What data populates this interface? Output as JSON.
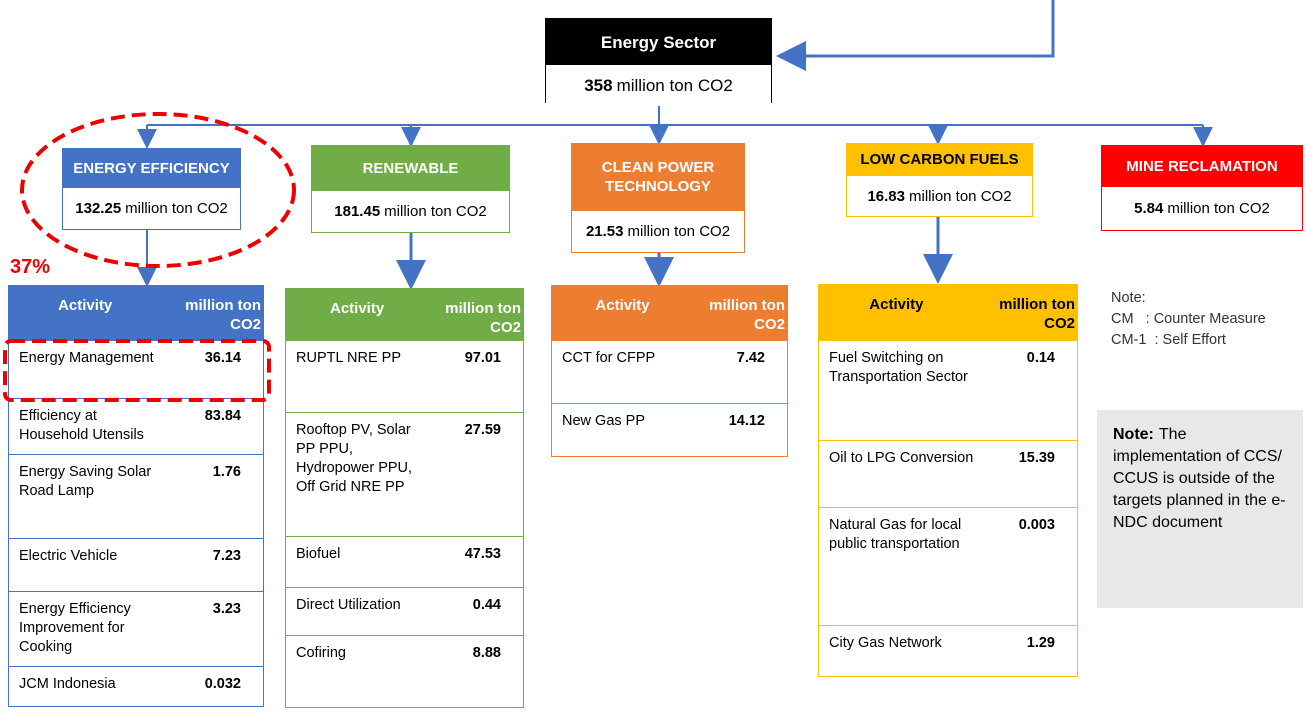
{
  "top": {
    "title": "Energy Sector",
    "value": "358",
    "unit": "million ton CO2"
  },
  "categories": [
    {
      "name": "ENERGY EFFICIENCY",
      "value": "132.25",
      "unit": "million ton CO2",
      "color": "#4472c4"
    },
    {
      "name": "RENEWABLE",
      "value": "181.45",
      "unit": "million ton CO2",
      "color": "#70ad47"
    },
    {
      "name": "CLEAN POWER TECHNOLOGY",
      "value": "21.53",
      "unit": "million ton CO2",
      "color": "#ed7d31"
    },
    {
      "name": "LOW CARBON FUELS",
      "value": "16.83",
      "unit": "million ton CO2",
      "color": "#ffc000"
    },
    {
      "name": "MINE RECLAMATION",
      "value": "5.84",
      "unit": "million ton CO2",
      "color": "#ff0000"
    }
  ],
  "tables": [
    {
      "header": [
        "Activity",
        "million ton CO2"
      ],
      "rows": [
        [
          "Energy Management",
          "36.14"
        ],
        [
          "Efficiency at Household Utensils",
          "83.84"
        ],
        [
          "Energy Saving Solar Road Lamp",
          "1.76"
        ],
        [
          "Electric Vehicle",
          "7.23"
        ],
        [
          "Energy Efficiency Improvement for Cooking",
          "3.23"
        ],
        [
          "JCM Indonesia",
          "0.032"
        ]
      ]
    },
    {
      "header": [
        "Activity",
        "million ton CO2"
      ],
      "rows": [
        [
          "RUPTL NRE PP",
          "97.01"
        ],
        [
          "Rooftop PV, Solar PP PPU, Hydropower PPU, Off Grid NRE PP",
          "27.59"
        ],
        [
          "Biofuel",
          "47.53"
        ],
        [
          "Direct Utilization",
          "0.44"
        ],
        [
          "Cofiring",
          "8.88"
        ]
      ]
    },
    {
      "header": [
        "Activity",
        "million ton CO2"
      ],
      "rows": [
        [
          "CCT for CFPP",
          "7.42"
        ],
        [
          "New Gas PP",
          "14.12"
        ]
      ]
    },
    {
      "header": [
        "Activity",
        "million ton CO2"
      ],
      "rows": [
        [
          "Fuel Switching on Transportation Sector",
          "0.14"
        ],
        [
          "Oil to LPG Conversion",
          "15.39"
        ],
        [
          "Natural Gas for local public transportation",
          "0.003"
        ],
        [
          "City Gas Network",
          "1.29"
        ]
      ]
    }
  ],
  "annotation": "37%",
  "legend": [
    "Note:",
    "CM   : Counter Measure",
    "CM-1  : Self Effort"
  ],
  "note": {
    "label": "Note:",
    "text": "The implementation of CCS/ CCUS is outside of the targets planned in the e-NDC document"
  }
}
